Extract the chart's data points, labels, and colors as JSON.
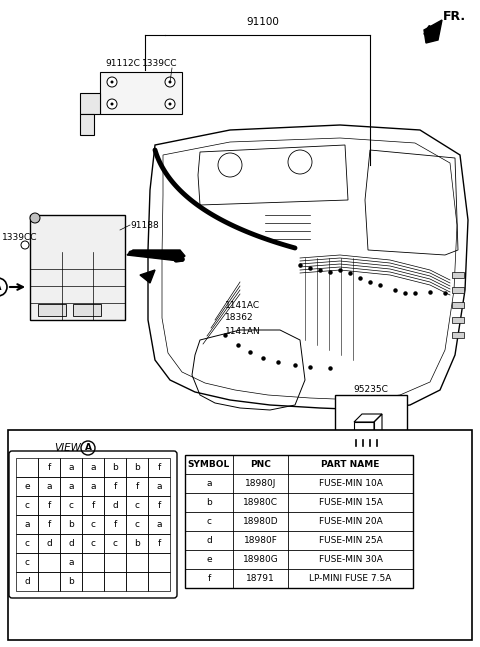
{
  "bg_color": "#ffffff",
  "fig_w": 4.8,
  "fig_h": 6.47,
  "dpi": 100,
  "part_number_top": "91100",
  "fr_label": "FR.",
  "label_91112C": "91112C",
  "label_1339CC_top": "1339CC",
  "label_91188": "91188",
  "label_1339CC_left": "1339CC",
  "label_1141AC": "1141AC",
  "label_18362": "18362",
  "label_1141AN": "1141AN",
  "label_95235C": "95235C",
  "table_data": [
    [
      "SYMBOL",
      "PNC",
      "PART NAME"
    ],
    [
      "a",
      "18980J",
      "FUSE-MIN 10A"
    ],
    [
      "b",
      "18980C",
      "FUSE-MIN 15A"
    ],
    [
      "c",
      "18980D",
      "FUSE-MIN 20A"
    ],
    [
      "d",
      "18980F",
      "FUSE-MIN 25A"
    ],
    [
      "e",
      "18980G",
      "FUSE-MIN 30A"
    ],
    [
      "f",
      "18791",
      "LP-MINI FUSE 7.5A"
    ]
  ],
  "fuse_grid": [
    [
      " ",
      "f",
      "a",
      "a",
      "b",
      "b",
      "f"
    ],
    [
      "e",
      "a",
      "a",
      "a",
      "f",
      "f",
      "a"
    ],
    [
      "c",
      "f",
      "c",
      "f",
      "d",
      "c",
      "f"
    ],
    [
      "a",
      "f",
      "b",
      "c",
      "f",
      "c",
      "a"
    ],
    [
      "c",
      "d",
      "d",
      "c",
      "c",
      "b",
      "f"
    ],
    [
      "c",
      " ",
      "a",
      " ",
      " ",
      " ",
      " "
    ],
    [
      "d",
      " ",
      "b",
      " ",
      " ",
      " ",
      " "
    ]
  ],
  "view_a_label": "VIEW",
  "circle_a_label": "A"
}
